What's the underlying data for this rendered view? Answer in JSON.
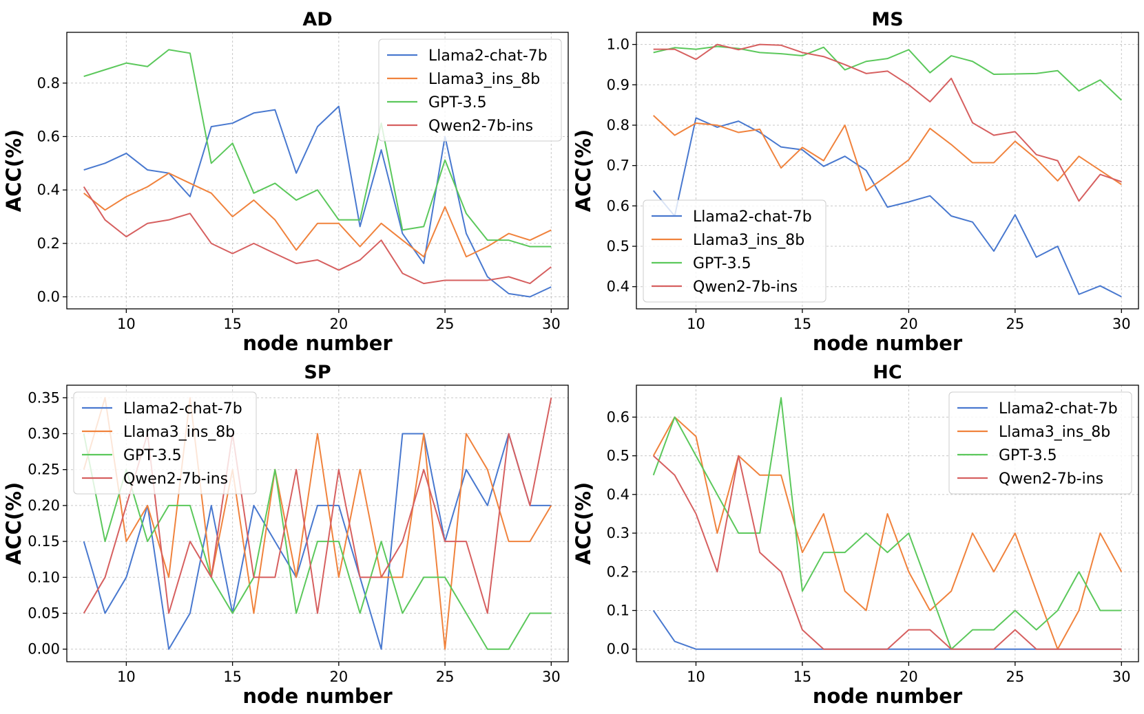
{
  "chart_data": [
    {
      "type": "line",
      "title": "AD",
      "xlabel": "node number",
      "ylabel": "ACC(%)",
      "x": [
        8,
        9,
        10,
        11,
        12,
        13,
        14,
        15,
        16,
        17,
        18,
        19,
        20,
        21,
        22,
        23,
        24,
        25,
        26,
        27,
        28,
        29,
        30
      ],
      "xlim": [
        7.2,
        30.8
      ],
      "ylim": [
        -0.045,
        0.99
      ],
      "xticks": [
        10,
        15,
        20,
        25,
        30
      ],
      "xtick_labels": [
        "10",
        "15",
        "20",
        "25",
        "30"
      ],
      "yticks": [
        0.0,
        0.2,
        0.4,
        0.6,
        0.8
      ],
      "ytick_labels": [
        "0.0",
        "0.2",
        "0.4",
        "0.6",
        "0.8"
      ],
      "grid": true,
      "legend": "top-right",
      "series": [
        {
          "name": "Llama2-chat-7b",
          "color": "#4878cf",
          "values": [
            0.475,
            0.5,
            0.537,
            0.475,
            0.463,
            0.375,
            0.637,
            0.65,
            0.688,
            0.7,
            0.463,
            0.637,
            0.713,
            0.263,
            0.55,
            0.237,
            0.125,
            0.6,
            0.237,
            0.075,
            0.012,
            0.0,
            0.037
          ]
        },
        {
          "name": "Llama3_ins_8b",
          "color": "#f0823c",
          "values": [
            0.388,
            0.325,
            0.375,
            0.412,
            0.463,
            0.425,
            0.388,
            0.3,
            0.362,
            0.288,
            0.175,
            0.275,
            0.275,
            0.188,
            0.275,
            0.212,
            0.15,
            0.337,
            0.15,
            0.188,
            0.237,
            0.212,
            0.25
          ]
        },
        {
          "name": "GPT-3.5",
          "color": "#5bc85b",
          "values": [
            0.825,
            0.85,
            0.875,
            0.862,
            0.925,
            0.912,
            0.5,
            0.575,
            0.388,
            0.425,
            0.362,
            0.4,
            0.288,
            0.288,
            0.65,
            0.25,
            0.263,
            0.512,
            0.312,
            0.212,
            0.212,
            0.188,
            0.188
          ]
        },
        {
          "name": "Qwen2-7b-ins",
          "color": "#d65f5f",
          "values": [
            0.412,
            0.288,
            0.225,
            0.275,
            0.288,
            0.312,
            0.2,
            0.162,
            0.2,
            0.162,
            0.125,
            0.138,
            0.1,
            0.138,
            0.212,
            0.088,
            0.05,
            0.062,
            0.062,
            0.062,
            0.075,
            0.05,
            0.112
          ]
        }
      ]
    },
    {
      "type": "line",
      "title": "MS",
      "xlabel": "node number",
      "ylabel": "ACC(%)",
      "x": [
        8,
        9,
        10,
        11,
        12,
        13,
        14,
        15,
        16,
        17,
        18,
        19,
        20,
        21,
        22,
        23,
        24,
        25,
        26,
        27,
        28,
        29,
        30
      ],
      "xlim": [
        7.2,
        30.8
      ],
      "ylim": [
        0.345,
        1.03
      ],
      "xticks": [
        10,
        15,
        20,
        25,
        30
      ],
      "xtick_labels": [
        "10",
        "15",
        "20",
        "25",
        "30"
      ],
      "yticks": [
        0.4,
        0.5,
        0.6,
        0.7,
        0.8,
        0.9,
        1.0
      ],
      "ytick_labels": [
        "0.4",
        "0.5",
        "0.6",
        "0.7",
        "0.8",
        "0.9",
        "1.0"
      ],
      "grid": true,
      "legend": "bottom-left",
      "series": [
        {
          "name": "Llama2-chat-7b",
          "color": "#4878cf",
          "values": [
            0.638,
            0.575,
            0.818,
            0.795,
            0.81,
            0.782,
            0.746,
            0.739,
            0.698,
            0.723,
            0.688,
            0.597,
            0.61,
            0.625,
            0.575,
            0.56,
            0.488,
            0.578,
            0.473,
            0.5,
            0.381,
            0.402,
            0.375
          ]
        },
        {
          "name": "Llama3_ins_8b",
          "color": "#f0823c",
          "values": [
            0.824,
            0.775,
            0.805,
            0.8,
            0.782,
            0.79,
            0.694,
            0.745,
            0.712,
            0.8,
            0.638,
            0.675,
            0.714,
            0.792,
            0.752,
            0.707,
            0.707,
            0.76,
            0.716,
            0.662,
            0.723,
            0.688,
            0.653
          ]
        },
        {
          "name": "GPT-3.5",
          "color": "#5bc85b",
          "values": [
            0.98,
            0.992,
            0.988,
            0.995,
            0.99,
            0.98,
            0.977,
            0.972,
            0.993,
            0.937,
            0.958,
            0.965,
            0.987,
            0.93,
            0.972,
            0.958,
            0.926,
            0.927,
            0.928,
            0.935,
            0.885,
            0.912,
            0.862
          ]
        },
        {
          "name": "Qwen2-7b-ins",
          "color": "#d65f5f",
          "values": [
            0.988,
            0.988,
            0.963,
            1.0,
            0.987,
            1.0,
            0.998,
            0.98,
            0.97,
            0.95,
            0.928,
            0.934,
            0.9,
            0.858,
            0.916,
            0.806,
            0.775,
            0.784,
            0.727,
            0.712,
            0.612,
            0.678,
            0.66
          ]
        }
      ]
    },
    {
      "type": "line",
      "title": "SP",
      "xlabel": "node number",
      "ylabel": "ACC(%)",
      "x": [
        8,
        9,
        10,
        11,
        12,
        13,
        14,
        15,
        16,
        17,
        18,
        19,
        20,
        21,
        22,
        23,
        24,
        25,
        26,
        27,
        28,
        29,
        30
      ],
      "xlim": [
        7.2,
        30.8
      ],
      "ylim": [
        -0.0175,
        0.3675
      ],
      "xticks": [
        10,
        15,
        20,
        25,
        30
      ],
      "xtick_labels": [
        "10",
        "15",
        "20",
        "25",
        "30"
      ],
      "yticks": [
        0.0,
        0.05,
        0.1,
        0.15,
        0.2,
        0.25,
        0.3,
        0.35
      ],
      "ytick_labels": [
        "0.00",
        "0.05",
        "0.10",
        "0.15",
        "0.20",
        "0.25",
        "0.30",
        "0.35"
      ],
      "grid": true,
      "legend": "top-left",
      "series": [
        {
          "name": "Llama2-chat-7b",
          "color": "#4878cf",
          "values": [
            0.15,
            0.05,
            0.1,
            0.2,
            0.0,
            0.05,
            0.2,
            0.05,
            0.2,
            0.15,
            0.1,
            0.2,
            0.2,
            0.1,
            0.0,
            0.3,
            0.3,
            0.15,
            0.25,
            0.2,
            0.3,
            0.2,
            0.2
          ]
        },
        {
          "name": "Llama3_ins_8b",
          "color": "#f0823c",
          "values": [
            0.25,
            0.35,
            0.15,
            0.2,
            0.1,
            0.35,
            0.1,
            0.25,
            0.05,
            0.25,
            0.1,
            0.3,
            0.1,
            0.25,
            0.1,
            0.1,
            0.3,
            0.0,
            0.3,
            0.25,
            0.15,
            0.15,
            0.2
          ]
        },
        {
          "name": "GPT-3.5",
          "color": "#5bc85b",
          "values": [
            0.3,
            0.15,
            0.25,
            0.15,
            0.2,
            0.2,
            0.1,
            0.05,
            0.1,
            0.25,
            0.05,
            0.15,
            0.15,
            0.05,
            0.15,
            0.05,
            0.1,
            0.1,
            0.05,
            0.0,
            0.0,
            0.05,
            0.05
          ]
        },
        {
          "name": "Qwen2-7b-ins",
          "color": "#d65f5f",
          "values": [
            0.05,
            0.1,
            0.2,
            0.3,
            0.05,
            0.15,
            0.1,
            0.3,
            0.1,
            0.1,
            0.25,
            0.05,
            0.25,
            0.1,
            0.1,
            0.15,
            0.25,
            0.15,
            0.15,
            0.05,
            0.3,
            0.2,
            0.35
          ]
        }
      ]
    },
    {
      "type": "line",
      "title": "HC",
      "xlabel": "node number",
      "ylabel": "ACC(%)",
      "x": [
        8,
        9,
        10,
        11,
        12,
        13,
        14,
        15,
        16,
        17,
        18,
        19,
        20,
        21,
        22,
        23,
        24,
        25,
        26,
        27,
        28,
        29,
        30
      ],
      "xlim": [
        7.2,
        30.8
      ],
      "ylim": [
        -0.0325,
        0.6825
      ],
      "xticks": [
        10,
        15,
        20,
        25,
        30
      ],
      "xtick_labels": [
        "10",
        "15",
        "20",
        "25",
        "30"
      ],
      "yticks": [
        0.0,
        0.1,
        0.2,
        0.3,
        0.4,
        0.5,
        0.6
      ],
      "ytick_labels": [
        "0.0",
        "0.1",
        "0.2",
        "0.3",
        "0.4",
        "0.5",
        "0.6"
      ],
      "grid": true,
      "legend": "top-right",
      "series": [
        {
          "name": "Llama2-chat-7b",
          "color": "#4878cf",
          "values": [
            0.1,
            0.02,
            0.0,
            0.0,
            0.0,
            0.0,
            0.0,
            0.0,
            0.0,
            0.0,
            0.0,
            0.0,
            0.0,
            0.0,
            0.0,
            0.0,
            0.0,
            0.0,
            0.0,
            0.0,
            0.0,
            0.0,
            0.0
          ]
        },
        {
          "name": "Llama3_ins_8b",
          "color": "#f0823c",
          "values": [
            0.5,
            0.6,
            0.55,
            0.3,
            0.5,
            0.45,
            0.45,
            0.25,
            0.35,
            0.15,
            0.1,
            0.35,
            0.2,
            0.1,
            0.15,
            0.3,
            0.2,
            0.3,
            0.15,
            0.0,
            0.1,
            0.3,
            0.2
          ]
        },
        {
          "name": "GPT-3.5",
          "color": "#5bc85b",
          "values": [
            0.45,
            0.6,
            0.5,
            0.4,
            0.3,
            0.3,
            0.65,
            0.15,
            0.25,
            0.25,
            0.3,
            0.25,
            0.3,
            0.15,
            0.0,
            0.05,
            0.05,
            0.1,
            0.05,
            0.1,
            0.2,
            0.1,
            0.1
          ]
        },
        {
          "name": "Qwen2-7b-ins",
          "color": "#d65f5f",
          "values": [
            0.5,
            0.45,
            0.35,
            0.2,
            0.5,
            0.25,
            0.2,
            0.05,
            0.0,
            0.0,
            0.0,
            0.0,
            0.05,
            0.05,
            0.0,
            0.0,
            0.0,
            0.05,
            0.0,
            0.0,
            0.0,
            0.0,
            0.0
          ]
        }
      ]
    }
  ]
}
